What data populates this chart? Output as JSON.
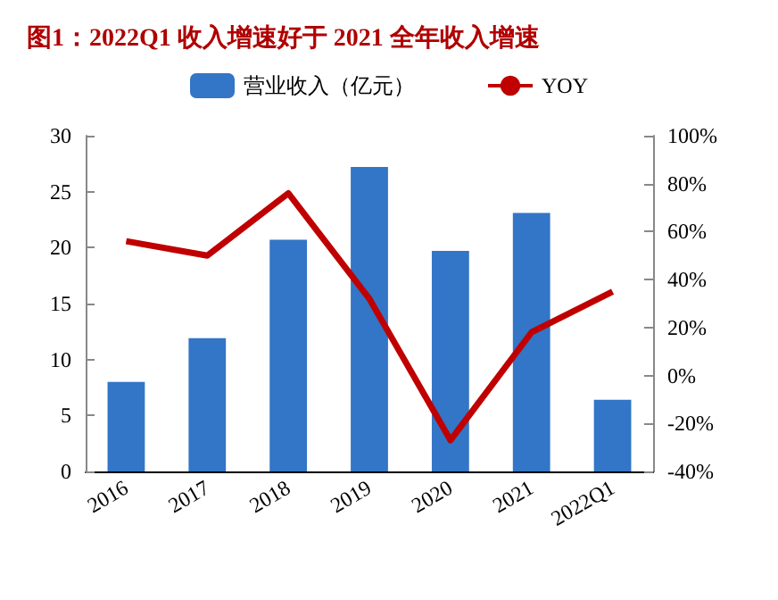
{
  "chart_data": {
    "type": "bar",
    "title": "图1：2022Q1 收入增速好于 2021 全年收入增速",
    "categories": [
      "2016",
      "2017",
      "2018",
      "2019",
      "2020",
      "2021",
      "2022Q1"
    ],
    "series": [
      {
        "name": "营业收入（亿元）",
        "color": "#3375c6",
        "values": [
          8.0,
          11.9,
          20.7,
          27.2,
          19.7,
          23.1,
          6.4
        ]
      },
      {
        "name": "YOY",
        "type": "line",
        "axis": "y2",
        "color": "#c00000",
        "values": [
          56,
          50,
          76,
          32,
          -27,
          18,
          35
        ]
      }
    ],
    "ylim": [
      0,
      30
    ],
    "yticks": [
      0,
      5,
      10,
      15,
      20,
      25,
      30
    ],
    "y2lim": [
      -40,
      100
    ],
    "y2ticks": [
      {
        "value": -40,
        "label": "-40%"
      },
      {
        "value": -20,
        "label": "-20%"
      },
      {
        "value": 0,
        "label": "0%"
      },
      {
        "value": 20,
        "label": "20%"
      },
      {
        "value": 40,
        "label": "40%"
      },
      {
        "value": 60,
        "label": "60%"
      },
      {
        "value": 80,
        "label": "80%"
      },
      {
        "value": 100,
        "label": "100%"
      }
    ],
    "legend": "top",
    "grid": false,
    "marker": "none"
  }
}
